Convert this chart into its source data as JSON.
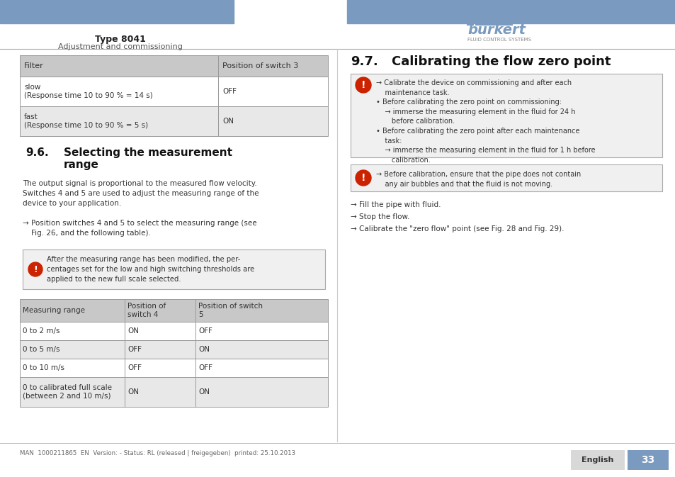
{
  "header_bar_color": "#7a9bbf",
  "header_left_text": "Type 8041",
  "header_left_sub": "Adjustment and commissioning",
  "page_number": "33",
  "page_lang": "English",
  "footer_text": "MAN  1000211865  EN  Version: - Status: RL (released | freigegeben)  printed: 25.10.2013",
  "bg_color": "#ffffff",
  "line_color": "#cccccc",
  "table1_header": [
    "Filter",
    "Position of switch 3"
  ],
  "table1_rows": [
    [
      "slow\n(Response time 10 to 90 % = 14 s)",
      "OFF"
    ],
    [
      "fast\n(Response time 10 to 90 % = 5 s)",
      "ON"
    ]
  ],
  "table2_header": [
    "Measuring range",
    "Position of\nswitch 4",
    "Position of switch\n5"
  ],
  "table2_rows": [
    [
      "0 to 2 m/s",
      "ON",
      "OFF"
    ],
    [
      "0 to 5 m/s",
      "OFF",
      "ON"
    ],
    [
      "0 to 10 m/s",
      "OFF",
      "OFF"
    ],
    [
      "0 to calibrated full scale\n(between 2 and 10 m/s)",
      "ON",
      "ON"
    ]
  ],
  "text_color": "#333333",
  "header_color": "#c8c8c8",
  "alt_row_color": "#e8e8e8",
  "warning_bg": "#f0f0f0",
  "warning_border": "#aaaaaa",
  "blue_color": "#7a9bbf",
  "warn_icon_color": "#cc2200"
}
